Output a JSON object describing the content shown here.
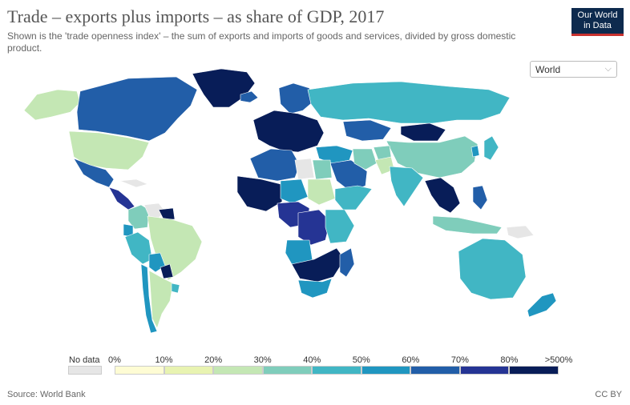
{
  "header": {
    "title": "Trade – exports plus imports – as share of GDP, 2017",
    "subtitle": "Shown is the 'trade openness index' – the sum of exports and imports of goods and services, divided by gross domestic product.",
    "logo_line1": "Our World",
    "logo_line2": "in Data"
  },
  "region_select": {
    "value": "World"
  },
  "legend": {
    "no_data_label": "No data",
    "ticks": [
      "0%",
      "10%",
      "20%",
      "30%",
      "40%",
      "50%",
      "60%",
      "70%",
      "80%",
      ">500%"
    ],
    "colors": [
      "#fefcd4",
      "#e8f3b1",
      "#c4e7b4",
      "#7fcdbb",
      "#41b6c4",
      "#2096c0",
      "#225ea8",
      "#253494",
      "#081d58"
    ],
    "no_data_color": "#e6e6e6"
  },
  "footer": {
    "source": "Source: World Bank",
    "license": "CC BY"
  },
  "map": {
    "regions": [
      {
        "name": "Canada",
        "color": "#225ea8"
      },
      {
        "name": "Alaska",
        "color": "#c4e7b4"
      },
      {
        "name": "Greenland",
        "color": "#081d58"
      },
      {
        "name": "United States",
        "color": "#c4e7b4"
      },
      {
        "name": "Mexico",
        "color": "#225ea8"
      },
      {
        "name": "Central America",
        "color": "#253494"
      },
      {
        "name": "Cuba",
        "color": "#e6e6e6"
      },
      {
        "name": "Colombia",
        "color": "#7fcdbb"
      },
      {
        "name": "Venezuela",
        "color": "#e6e6e6"
      },
      {
        "name": "Guyana",
        "color": "#081d58"
      },
      {
        "name": "Ecuador",
        "color": "#2096c0"
      },
      {
        "name": "Peru",
        "color": "#41b6c4"
      },
      {
        "name": "Brazil",
        "color": "#c4e7b4"
      },
      {
        "name": "Bolivia",
        "color": "#2096c0"
      },
      {
        "name": "Paraguay",
        "color": "#081d58"
      },
      {
        "name": "Chile",
        "color": "#2096c0"
      },
      {
        "name": "Argentina",
        "color": "#c4e7b4"
      },
      {
        "name": "Uruguay",
        "color": "#41b6c4"
      },
      {
        "name": "Iceland",
        "color": "#225ea8"
      },
      {
        "name": "Scandinavia",
        "color": "#225ea8"
      },
      {
        "name": "Western Europe",
        "color": "#081d58"
      },
      {
        "name": "Russia",
        "color": "#41b6c4"
      },
      {
        "name": "Kazakhstan",
        "color": "#225ea8"
      },
      {
        "name": "Mongolia",
        "color": "#081d58"
      },
      {
        "name": "China",
        "color": "#7fcdbb"
      },
      {
        "name": "Middle East",
        "color": "#2096c0"
      },
      {
        "name": "Arabian Peninsula",
        "color": "#225ea8"
      },
      {
        "name": "Iran",
        "color": "#7fcdbb"
      },
      {
        "name": "Afghanistan",
        "color": "#7fcdbb"
      },
      {
        "name": "Pakistan",
        "color": "#c4e7b4"
      },
      {
        "name": "India",
        "color": "#41b6c4"
      },
      {
        "name": "Southeast Asia",
        "color": "#081d58"
      },
      {
        "name": "Philippines",
        "color": "#225ea8"
      },
      {
        "name": "Indonesia",
        "color": "#7fcdbb"
      },
      {
        "name": "Japan",
        "color": "#41b6c4"
      },
      {
        "name": "South Korea",
        "color": "#2096c0"
      },
      {
        "name": "North Africa West",
        "color": "#225ea8"
      },
      {
        "name": "Libya",
        "color": "#e6e6e6"
      },
      {
        "name": "Egypt",
        "color": "#7fcdbb"
      },
      {
        "name": "West Africa",
        "color": "#081d58"
      },
      {
        "name": "Sahel",
        "color": "#2096c0"
      },
      {
        "name": "Sudan",
        "color": "#c4e7b4"
      },
      {
        "name": "Horn of Africa",
        "color": "#41b6c4"
      },
      {
        "name": "Central Africa",
        "color": "#253494"
      },
      {
        "name": "DR Congo",
        "color": "#253494"
      },
      {
        "name": "Angola",
        "color": "#2096c0"
      },
      {
        "name": "East Africa",
        "color": "#41b6c4"
      },
      {
        "name": "Southern Africa",
        "color": "#081d58"
      },
      {
        "name": "South Africa",
        "color": "#2096c0"
      },
      {
        "name": "Madagascar",
        "color": "#225ea8"
      },
      {
        "name": "Australia",
        "color": "#41b6c4"
      },
      {
        "name": "New Zealand",
        "color": "#2096c0"
      },
      {
        "name": "Papua New Guinea",
        "color": "#e6e6e6"
      }
    ]
  }
}
